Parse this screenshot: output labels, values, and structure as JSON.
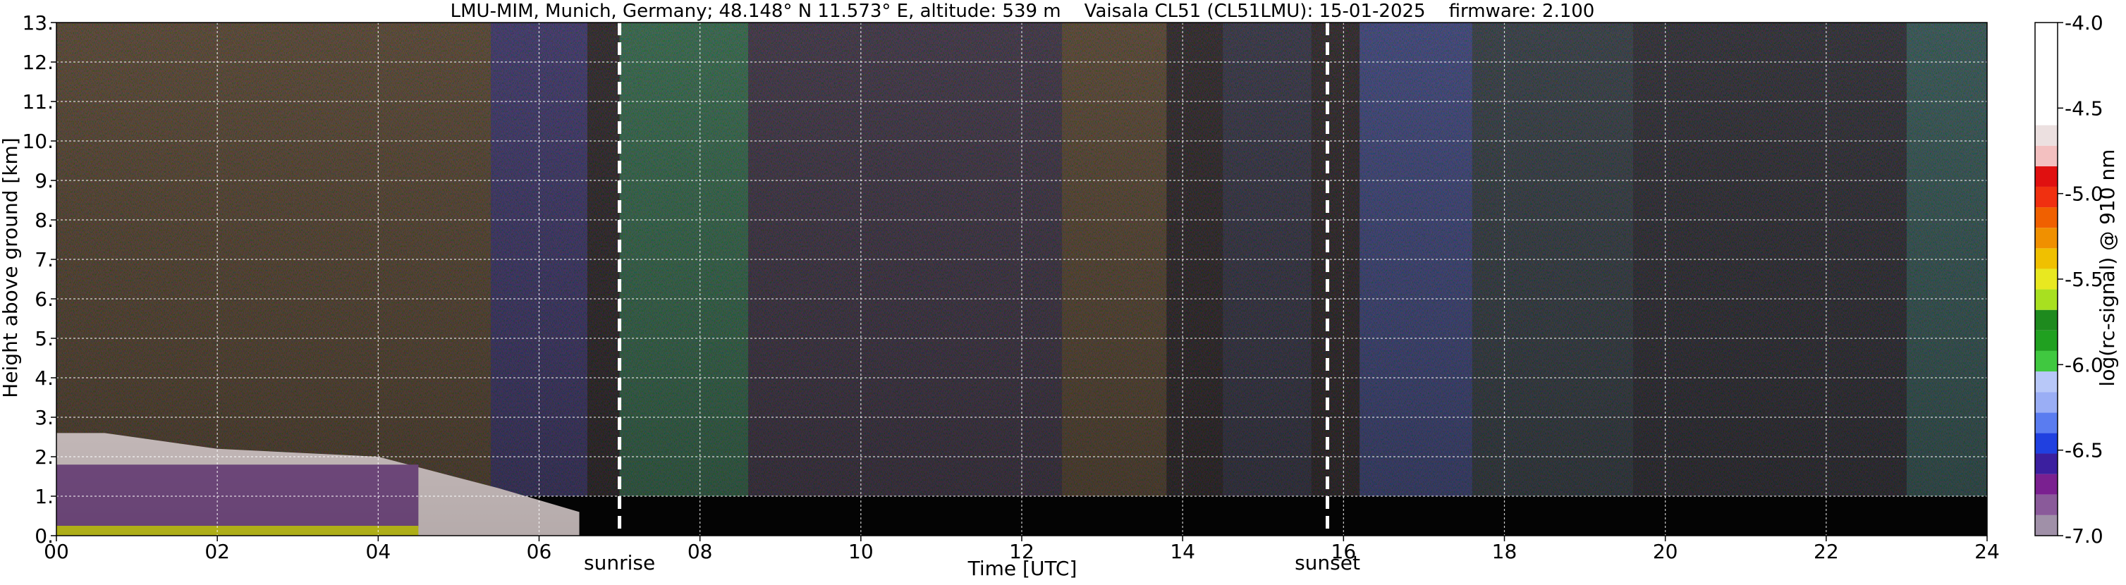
{
  "chart_data": {
    "type": "heatmap",
    "title": "LMU-MIM, Munich, Germany; 48.148° N 11.573° E, altitude: 539 m    Vaisala CL51 (CL51LMU): 15-01-2025    firmware: 2.100",
    "xlabel": "Time [UTC]",
    "ylabel": "Height above ground [km]",
    "xlim": [
      0,
      24
    ],
    "ylim": [
      0,
      13
    ],
    "x_ticks": [
      "00",
      "02",
      "04",
      "06",
      "08",
      "10",
      "12",
      "14",
      "16",
      "18",
      "20",
      "22",
      "24"
    ],
    "y_ticks": [
      "0.",
      "1.",
      "2.",
      "3.",
      "4.",
      "5.",
      "6.",
      "7.",
      "8.",
      "9.",
      "10.",
      "11.",
      "12.",
      "13."
    ],
    "grid": true,
    "colorbar": {
      "label": "log(rc-signal) @ 910 nm",
      "range": [
        -7.0,
        -4.0
      ],
      "ticks": [
        "-7.0",
        "-6.5",
        "-6.0",
        "-5.5",
        "-5.0",
        "-4.5",
        "-4.0"
      ],
      "colors": [
        "#a090a8",
        "#8a5a9a",
        "#7a2090",
        "#3b1f9f",
        "#2040e0",
        "#5a7cf0",
        "#9aaef5",
        "#b8c8f8",
        "#40c840",
        "#20a020",
        "#1e8a1e",
        "#a8e020",
        "#e8e820",
        "#f0c000",
        "#f09000",
        "#f06000",
        "#f03010",
        "#e01010",
        "#f3c0c0",
        "#ece0e0",
        "#ffffff"
      ]
    },
    "annotations": [
      {
        "text": "sunrise",
        "x": 7.0
      },
      {
        "text": "sunset",
        "x": 15.8
      }
    ]
  }
}
